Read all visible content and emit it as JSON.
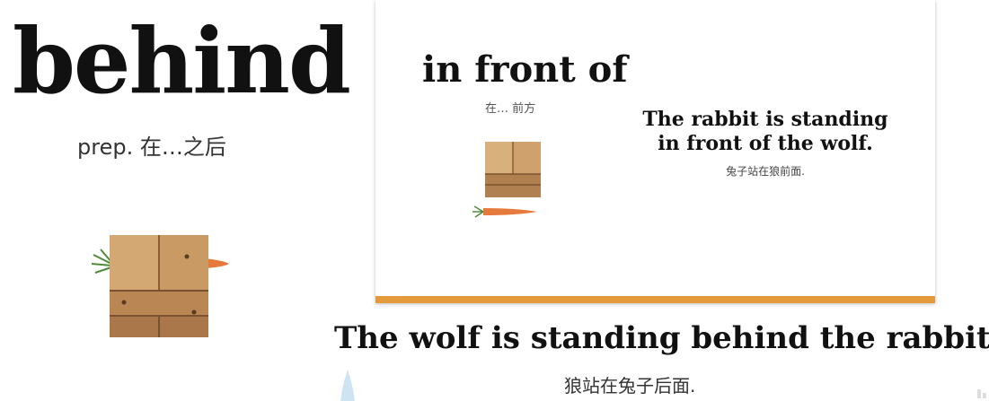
{
  "left_panel": {
    "word": "behind",
    "definition": "prep. 在…之后"
  },
  "slide": {
    "title": "in front of",
    "title_cn": "在… 前方",
    "sentence_line1": "The rabbit is standing",
    "sentence_line2": "in front of the wolf.",
    "sentence_cn": "兔子站在狼前面.",
    "bar_color": "#e39a3a"
  },
  "caption": {
    "sentence": "The wolf is standing behind the rabbit.",
    "sentence_cn": "狼站在兔子后面."
  },
  "icons": {
    "left_illustration": "wooden-box-with-carrot-icon",
    "slide_illustration": "wooden-box-icon",
    "slide_carrot": "carrot-icon"
  }
}
